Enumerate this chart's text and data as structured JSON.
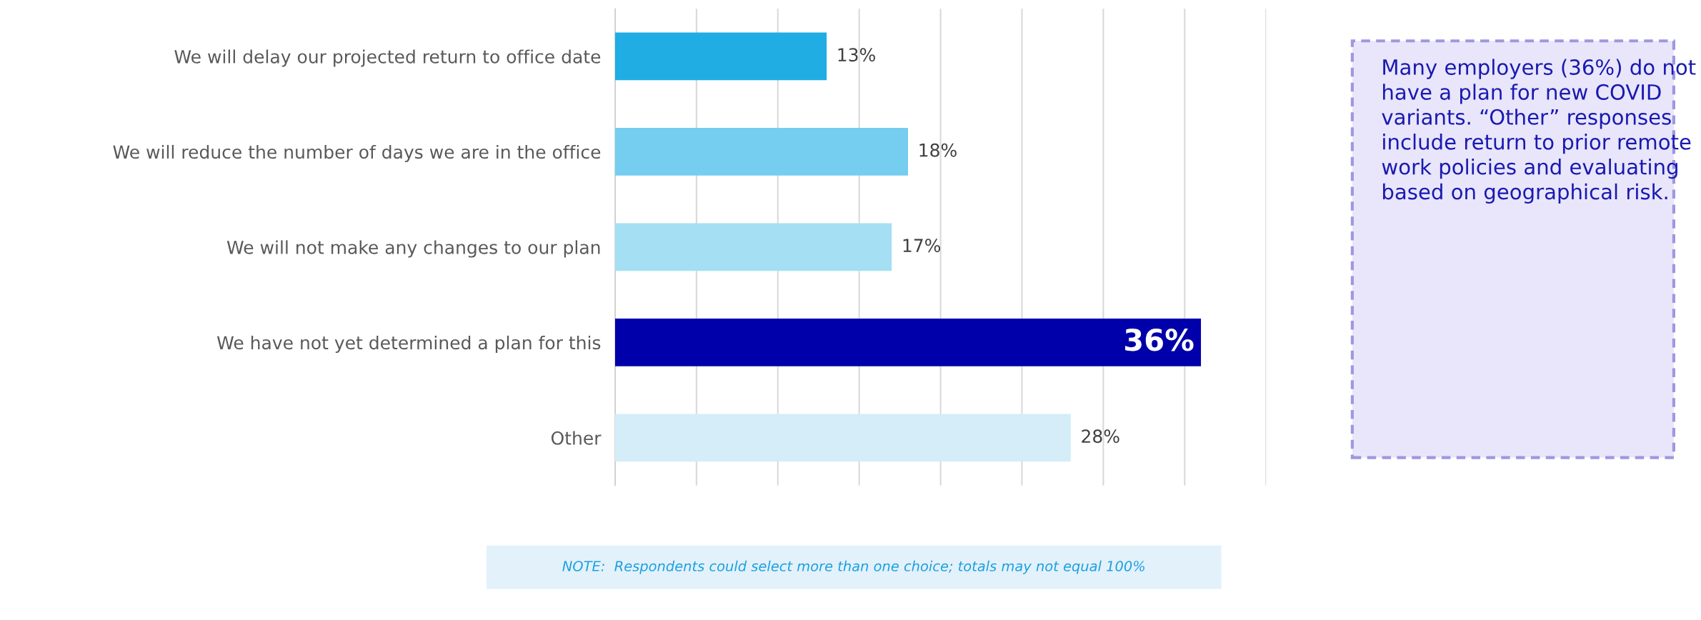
{
  "chart_data": {
    "type": "bar",
    "orientation": "horizontal",
    "categories": [
      "We will delay our projected return to office date",
      "We will reduce the number of days we are in the office",
      "We will not make any changes to our plan",
      "We have not yet determined a plan for this",
      "Other"
    ],
    "values": [
      13,
      18,
      17,
      36,
      28
    ],
    "colors": [
      "#1fade4",
      "#75cdf0",
      "#a5dff3",
      "#0000aa",
      "#d4edf8"
    ],
    "value_labels": [
      "13%",
      "18%",
      "17%",
      "36%",
      "28%"
    ],
    "xlim": [
      0,
      40
    ],
    "xticks": [
      {
        "value": 0,
        "label": null
      },
      {
        "value": 5,
        "label": null
      },
      {
        "value": 10,
        "label": null
      },
      {
        "value": 15,
        "label": null
      },
      {
        "value": 20,
        "label": null
      },
      {
        "value": 25,
        "label": null
      },
      {
        "value": 30,
        "label": null
      },
      {
        "value": 35,
        "label": null
      },
      {
        "value": 40,
        "label": null
      }
    ],
    "grid": "x",
    "tick_labels": "y",
    "annotations": [
      "Many employers (36%) do not have a plan for new COVID variants. “Other” responses include return to prior remote work policies and evaluating based on geographical risk.",
      "NOTE:  Respondents could select more than one choice; totals may not equal 100%"
    ]
  }
}
